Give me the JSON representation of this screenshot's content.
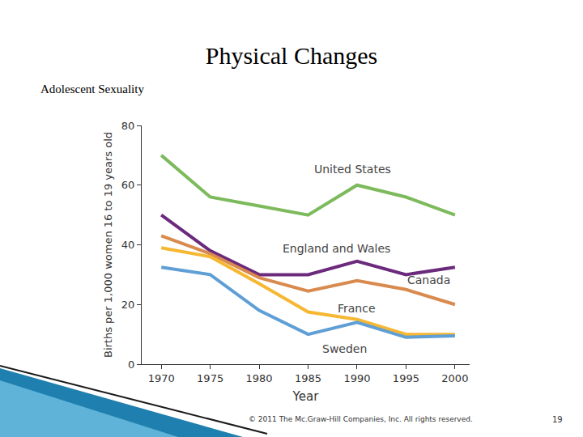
{
  "chart_data": {
    "type": "line",
    "title": "Physical Changes",
    "subtitle": "Adolescent Sexuality",
    "x_label": "Year",
    "y_label": "Births per 1,000 women 16 to 19 years old",
    "x": [
      1970,
      1975,
      1980,
      1985,
      1990,
      1995,
      2000
    ],
    "series": [
      {
        "name": "United States",
        "color": "#7dba5c",
        "values": [
          70,
          56,
          53,
          50,
          60,
          56,
          50
        ]
      },
      {
        "name": "England and Wales",
        "color": "#6b2a7c",
        "values": [
          50,
          38,
          30,
          30,
          34.5,
          30,
          32.5
        ]
      },
      {
        "name": "Canada",
        "color": "#d98a4e",
        "values": [
          43,
          37,
          29,
          24.5,
          28,
          25,
          20
        ]
      },
      {
        "name": "France",
        "color": "#f6b733",
        "values": [
          39,
          36,
          27,
          17.5,
          15,
          10,
          10
        ]
      },
      {
        "name": "Sweden",
        "color": "#5f9fd6",
        "values": [
          32.5,
          30,
          18,
          10,
          14,
          9,
          9.5
        ]
      }
    ],
    "xlim": [
      1968,
      2001.5
    ],
    "xticks": [
      1970,
      1975,
      1980,
      1985,
      1990,
      1995,
      2000
    ],
    "ylim": [
      0,
      80
    ],
    "yticks": [
      0,
      20,
      40,
      60,
      80
    ],
    "grid": false,
    "annotations": [
      "© 2011 The Mc.Graw-Hill Companies, Inc. All rights reserved.",
      "19"
    ]
  }
}
